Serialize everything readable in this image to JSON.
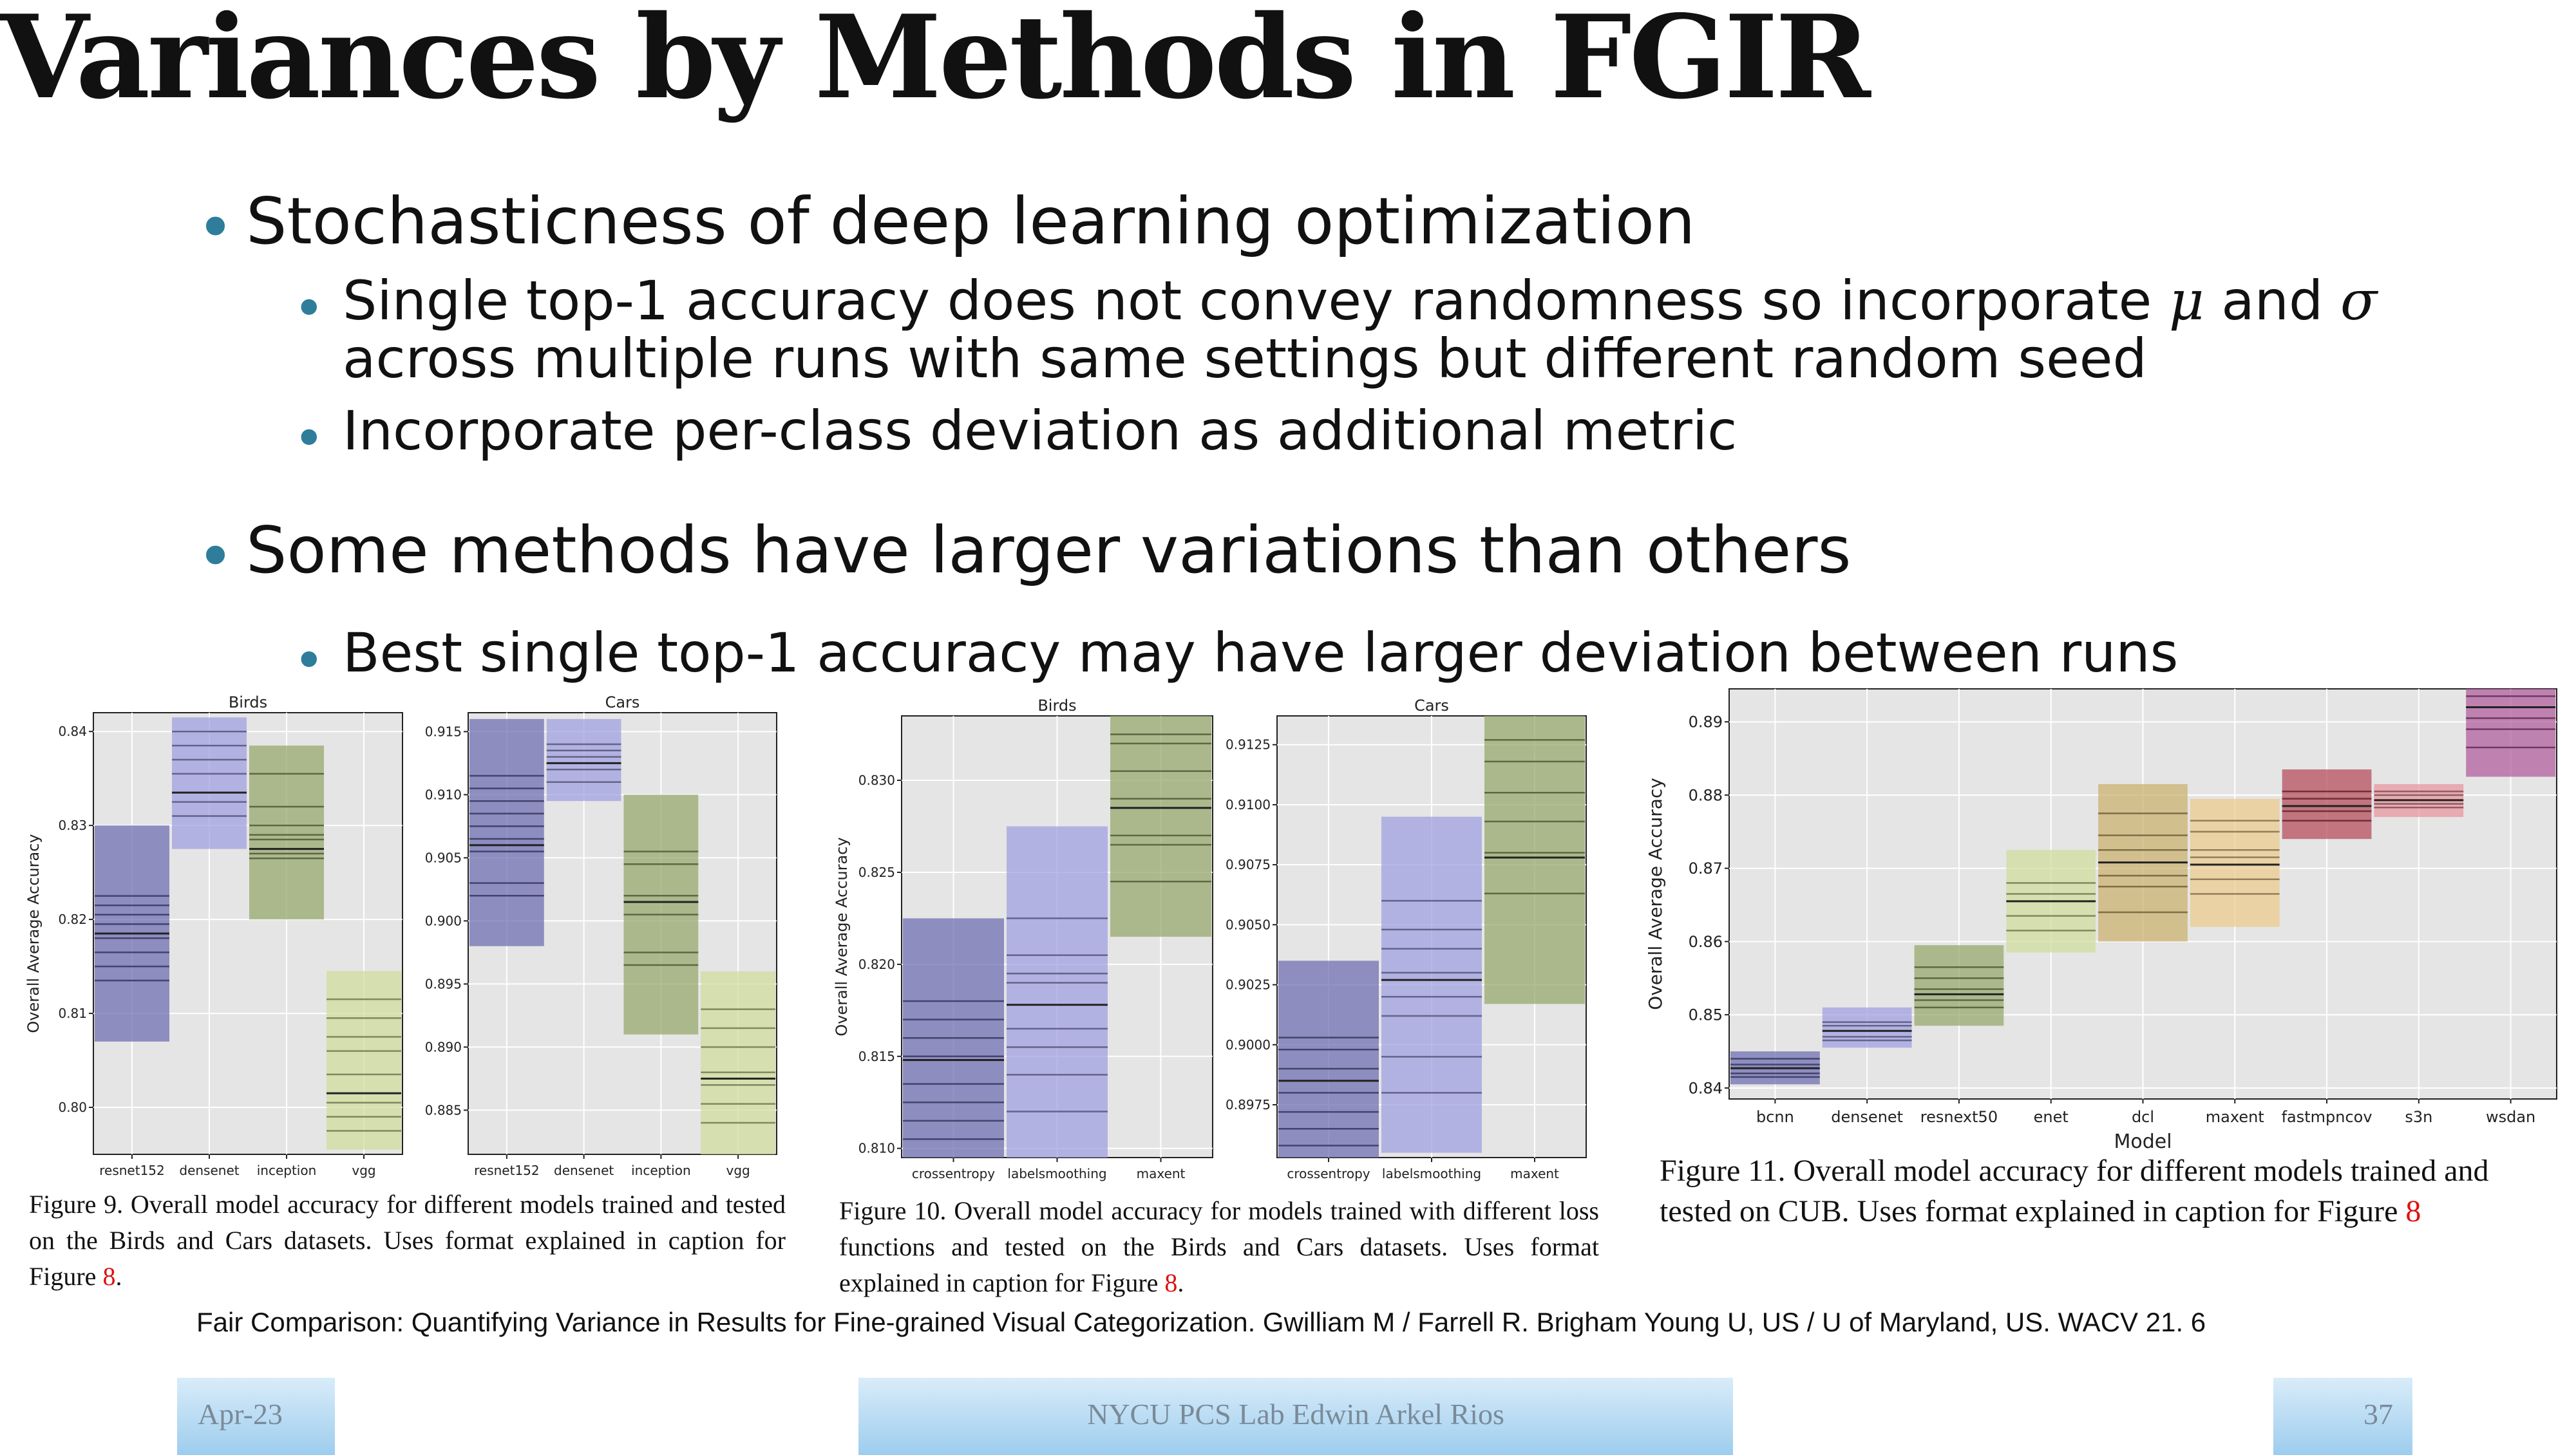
{
  "slide": {
    "title": "Variances by Methods in FGIR",
    "bullets": {
      "b1": "Stochasticness of deep learning optimization",
      "b1_1a": "Single top-1 accuracy does not convey randomness so incorporate",
      "mu": "μ",
      "and": "and",
      "sigma": "σ",
      "b1_1b": "across multiple runs with same settings but different random seed",
      "b1_2": "Incorporate per-class deviation as additional metric",
      "b2": "Some methods have larger variations than others",
      "b2_1": "Best single top-1 accuracy may have larger deviation between runs"
    },
    "bullet_glyph": "•",
    "citation": "Fair Comparison: Quantifying Variance in Results for Fine-grained Visual Categorization. Gwilliam M / Farrell R. Brigham Young U, US / U of Maryland, US. WACV 21. 6",
    "footer": {
      "date": "Apr-23",
      "center": "NYCU PCS Lab Edwin Arkel Rios",
      "page": "37"
    }
  },
  "captions": {
    "fig9": {
      "text": "Figure 9. Overall model accuracy for different models trained and tested on the Birds and Cars datasets. Uses format explained in caption for Figure",
      "ref": "8",
      "end": "."
    },
    "fig10": {
      "text": "Figure 10. Overall model accuracy for models trained with different loss functions and tested on the Birds and Cars datasets. Uses format explained in caption for Figure",
      "ref": "8",
      "end": "."
    },
    "fig11": {
      "text": "Figure 11. Overall model accuracy for different models trained and tested on CUB. Uses format explained in caption for Figure",
      "ref": "8",
      "end": ""
    }
  },
  "colors": {
    "bullet": "#2e7d9a",
    "plot_bg": "#e5e5e5",
    "grid": "#ffffff",
    "ref": "#dd1111"
  },
  "chart_data": [
    {
      "type": "bar",
      "title": "Birds",
      "ylabel": "Overall Average Accuracy",
      "xlabel": "",
      "ylim": [
        0.795,
        0.842
      ],
      "yticks": [
        0.8,
        0.81,
        0.82,
        0.83,
        0.84
      ],
      "categories": [
        "resnet152",
        "densenet",
        "inception",
        "vgg"
      ],
      "series": [
        {
          "category": "resnet152",
          "min": 0.807,
          "max": 0.83,
          "mean": 0.8185,
          "color": "#6b6bb0",
          "runs": [
            0.8135,
            0.815,
            0.8165,
            0.818,
            0.8195,
            0.8205,
            0.8215,
            0.8225
          ]
        },
        {
          "category": "densenet",
          "min": 0.8275,
          "max": 0.8415,
          "mean": 0.8335,
          "color": "#9e9ee0",
          "runs": [
            0.831,
            0.8325,
            0.8335,
            0.8355,
            0.837,
            0.8385,
            0.84
          ]
        },
        {
          "category": "inception",
          "min": 0.82,
          "max": 0.8385,
          "mean": 0.8275,
          "color": "#94a66a",
          "runs": [
            0.8265,
            0.827,
            0.8285,
            0.829,
            0.83,
            0.832,
            0.8355
          ]
        },
        {
          "category": "vgg",
          "min": 0.7955,
          "max": 0.8145,
          "mean": 0.8015,
          "color": "#cfdc9a",
          "runs": [
            0.7975,
            0.799,
            0.8005,
            0.8035,
            0.806,
            0.8075,
            0.8095,
            0.8115
          ]
        }
      ]
    },
    {
      "type": "bar",
      "title": "Cars",
      "ylabel": "",
      "xlabel": "",
      "ylim": [
        0.8815,
        0.9165
      ],
      "yticks": [
        0.885,
        0.89,
        0.895,
        0.9,
        0.905,
        0.91,
        0.915
      ],
      "categories": [
        "resnet152",
        "densenet",
        "inception",
        "vgg"
      ],
      "series": [
        {
          "category": "resnet152",
          "min": 0.898,
          "max": 0.916,
          "mean": 0.906,
          "color": "#6b6bb0",
          "runs": [
            0.902,
            0.903,
            0.9055,
            0.9065,
            0.9075,
            0.9085,
            0.9095,
            0.9105,
            0.9115
          ]
        },
        {
          "category": "densenet",
          "min": 0.9095,
          "max": 0.916,
          "mean": 0.9125,
          "color": "#9e9ee0",
          "runs": [
            0.911,
            0.912,
            0.9125,
            0.913,
            0.9135,
            0.914
          ]
        },
        {
          "category": "inception",
          "min": 0.891,
          "max": 0.91,
          "mean": 0.9015,
          "color": "#94a66a",
          "runs": [
            0.8965,
            0.8975,
            0.9005,
            0.9015,
            0.902,
            0.9045,
            0.9055
          ]
        },
        {
          "category": "vgg",
          "min": 0.8815,
          "max": 0.896,
          "mean": 0.8875,
          "color": "#cfdc9a",
          "runs": [
            0.884,
            0.8855,
            0.887,
            0.888,
            0.89,
            0.8915,
            0.893
          ]
        }
      ]
    },
    {
      "type": "bar",
      "title": "Birds",
      "ylabel": "Overall Average Accuracy",
      "xlabel": "",
      "ylim": [
        0.8095,
        0.8335
      ],
      "yticks": [
        0.81,
        0.815,
        0.82,
        0.825,
        0.83
      ],
      "categories": [
        "crossentropy",
        "labelsmoothing",
        "maxent"
      ],
      "series": [
        {
          "category": "crossentropy",
          "min": 0.8095,
          "max": 0.8225,
          "mean": 0.8148,
          "color": "#6b6bb0",
          "runs": [
            0.8105,
            0.8115,
            0.8125,
            0.8135,
            0.815,
            0.816,
            0.817,
            0.818
          ]
        },
        {
          "category": "labelsmoothing",
          "min": 0.8095,
          "max": 0.8275,
          "mean": 0.8178,
          "color": "#9e9ee0",
          "runs": [
            0.812,
            0.814,
            0.8155,
            0.8165,
            0.819,
            0.8195,
            0.8205,
            0.8225
          ]
        },
        {
          "category": "maxent",
          "min": 0.8215,
          "max": 0.8335,
          "mean": 0.8285,
          "color": "#94a66a",
          "runs": [
            0.8245,
            0.8265,
            0.827,
            0.8285,
            0.829,
            0.8305,
            0.832,
            0.8325
          ]
        }
      ]
    },
    {
      "type": "bar",
      "title": "Cars",
      "ylabel": "",
      "xlabel": "",
      "ylim": [
        0.8953,
        0.9137
      ],
      "yticks": [
        0.8975,
        0.9,
        0.9025,
        0.905,
        0.9075,
        0.91,
        0.9125
      ],
      "categories": [
        "crossentropy",
        "labelsmoothing",
        "maxent"
      ],
      "series": [
        {
          "category": "crossentropy",
          "min": 0.8953,
          "max": 0.9035,
          "mean": 0.8985,
          "color": "#6b6bb0",
          "runs": [
            0.8958,
            0.8965,
            0.8972,
            0.898,
            0.899,
            0.8998,
            0.9003
          ]
        },
        {
          "category": "labelsmoothing",
          "min": 0.8955,
          "max": 0.9095,
          "mean": 0.9027,
          "color": "#9e9ee0",
          "runs": [
            0.898,
            0.8995,
            0.9012,
            0.902,
            0.903,
            0.904,
            0.9048,
            0.906
          ]
        },
        {
          "category": "maxent",
          "min": 0.9017,
          "max": 0.9137,
          "mean": 0.9078,
          "color": "#94a66a",
          "runs": [
            0.9063,
            0.908,
            0.9093,
            0.9105,
            0.9118,
            0.9127
          ]
        }
      ]
    },
    {
      "type": "bar",
      "title": "",
      "ylabel": "Overall Average Accuracy",
      "xlabel": "Model",
      "ylim": [
        0.8385,
        0.8945
      ],
      "yticks": [
        0.84,
        0.85,
        0.86,
        0.87,
        0.88,
        0.89
      ],
      "categories": [
        "bcnn",
        "densenet",
        "resnext50",
        "enet",
        "dcl",
        "maxent",
        "fastmpncov",
        "s3n",
        "wsdan"
      ],
      "series": [
        {
          "category": "bcnn",
          "min": 0.8405,
          "max": 0.845,
          "mean": 0.8427,
          "color": "#6b6bb0",
          "runs": [
            0.8415,
            0.842,
            0.8432,
            0.844
          ]
        },
        {
          "category": "densenet",
          "min": 0.8455,
          "max": 0.851,
          "mean": 0.8478,
          "color": "#9e9ee0",
          "runs": [
            0.8465,
            0.847,
            0.8485,
            0.849
          ]
        },
        {
          "category": "resnext50",
          "min": 0.8485,
          "max": 0.8595,
          "mean": 0.8528,
          "color": "#94a66a",
          "runs": [
            0.851,
            0.852,
            0.8535,
            0.855,
            0.8565
          ]
        },
        {
          "category": "enet",
          "min": 0.8585,
          "max": 0.8725,
          "mean": 0.8655,
          "color": "#cfdc9a",
          "runs": [
            0.8615,
            0.8635,
            0.8665,
            0.868
          ]
        },
        {
          "category": "dcl",
          "min": 0.86,
          "max": 0.8815,
          "mean": 0.8708,
          "color": "#c9b06c",
          "runs": [
            0.864,
            0.8675,
            0.869,
            0.8725,
            0.8745,
            0.8775
          ]
        },
        {
          "category": "maxent",
          "min": 0.862,
          "max": 0.8795,
          "mean": 0.8705,
          "color": "#eccb8c",
          "runs": [
            0.8665,
            0.8685,
            0.8715,
            0.8725,
            0.875,
            0.8765
          ]
        },
        {
          "category": "fastmpncov",
          "min": 0.874,
          "max": 0.8835,
          "mean": 0.8785,
          "color": "#b44a58",
          "runs": [
            0.8765,
            0.8778,
            0.8795,
            0.8805
          ]
        },
        {
          "category": "s3n",
          "min": 0.877,
          "max": 0.8815,
          "mean": 0.8793,
          "color": "#e8949c",
          "runs": [
            0.8783,
            0.8788,
            0.88,
            0.8805
          ]
        },
        {
          "category": "wsdan",
          "min": 0.8825,
          "max": 0.8945,
          "mean": 0.892,
          "color": "#b05a9a",
          "runs": [
            0.8865,
            0.889,
            0.8905,
            0.8935
          ]
        }
      ]
    }
  ]
}
